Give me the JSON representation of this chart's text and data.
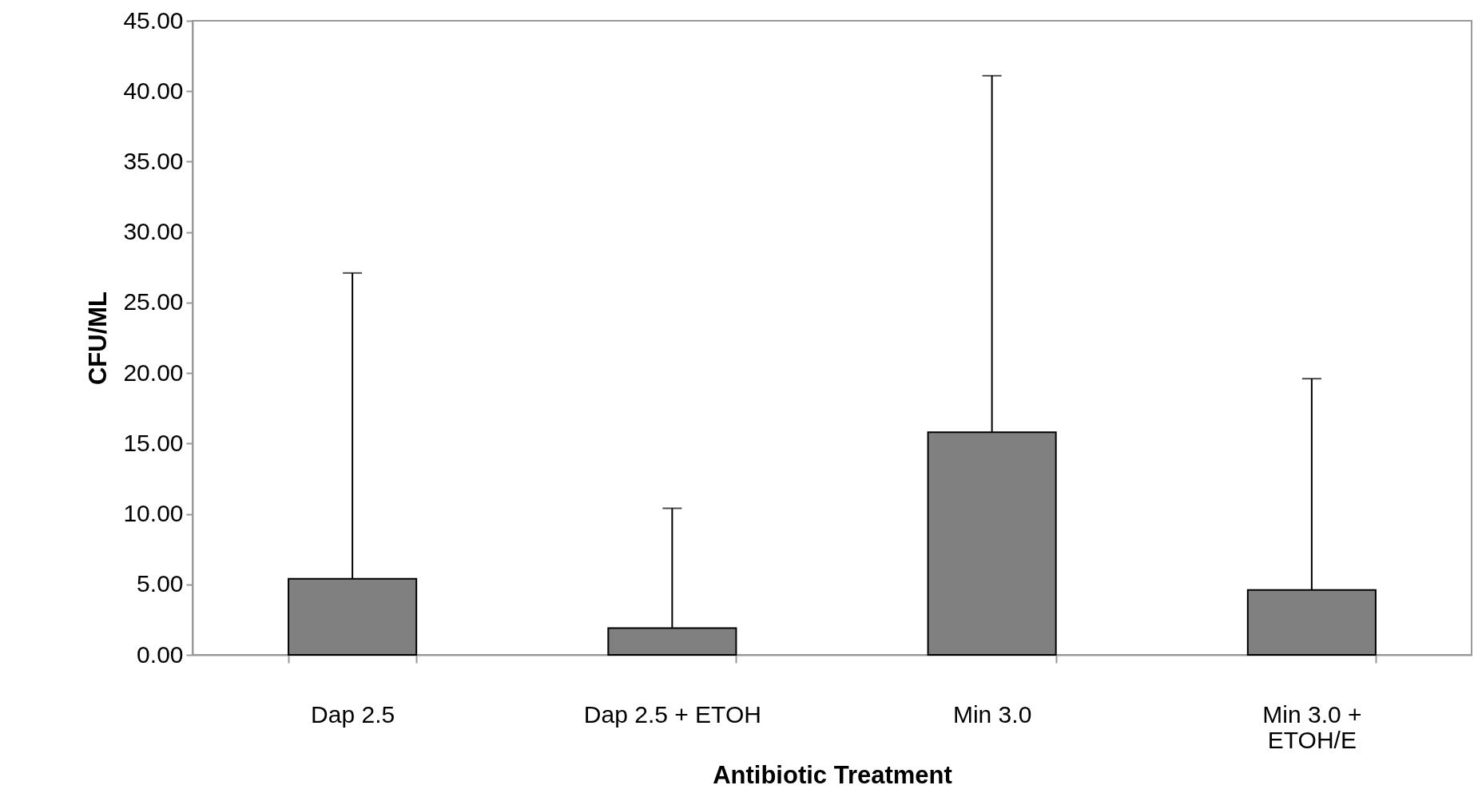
{
  "chart_data": {
    "type": "bar",
    "xlabel": "Antibiotic Treatment",
    "ylabel": "CFU/ML",
    "categories": [
      "Dap 2.5",
      "Dap 2.5 + ETOH",
      "Min 3.0",
      "Min 3.0 + ETOH/E"
    ],
    "values": [
      5.4,
      1.9,
      15.8,
      4.6
    ],
    "errors": [
      [
        5.4,
        27.1
      ],
      [
        1.9,
        10.4
      ],
      [
        15.8,
        41.1
      ],
      [
        4.6,
        19.6
      ]
    ],
    "color": "#808080",
    "ylim": [
      0,
      45
    ],
    "yticks": [
      {
        "value": 0,
        "label": "0.00"
      },
      {
        "value": 5,
        "label": "5.00"
      },
      {
        "value": 10,
        "label": "10.00"
      },
      {
        "value": 15,
        "label": "15.00"
      },
      {
        "value": 20,
        "label": "20.00"
      },
      {
        "value": 25,
        "label": "25.00"
      },
      {
        "value": 30,
        "label": "30.00"
      },
      {
        "value": 35,
        "label": "35.00"
      },
      {
        "value": 40,
        "label": "40.00"
      },
      {
        "value": 45,
        "label": "45.00"
      }
    ],
    "grid": false
  }
}
